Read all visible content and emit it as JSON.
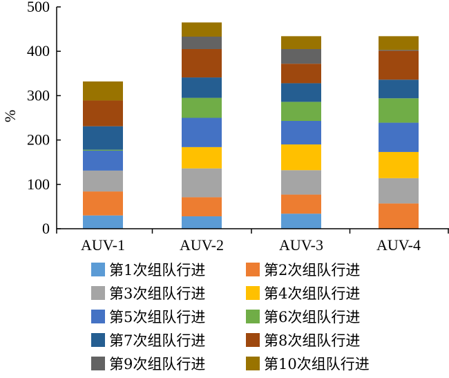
{
  "chart_data": {
    "type": "bar",
    "stacked": true,
    "ylabel": "%",
    "ylim": [
      0,
      500
    ],
    "yticks": [
      0,
      100,
      200,
      300,
      400,
      500
    ],
    "categories": [
      "AUV-1",
      "AUV-2",
      "AUV-3",
      "AUV-4"
    ],
    "legend_position": "bottom",
    "grid": false,
    "series": [
      {
        "name": "第1次组队行进",
        "color": "#5b9bd5",
        "values": [
          30,
          28,
          34,
          0
        ]
      },
      {
        "name": "第2次组队行进",
        "color": "#ed7d31",
        "values": [
          54,
          43,
          43,
          57
        ]
      },
      {
        "name": "第3次组队行进",
        "color": "#a5a5a5",
        "values": [
          47,
          65,
          55,
          57
        ]
      },
      {
        "name": "第4次组队行进",
        "color": "#ffc000",
        "values": [
          0,
          48,
          58,
          59
        ]
      },
      {
        "name": "第5次组队行进",
        "color": "#4472c4",
        "values": [
          45,
          66,
          53,
          66
        ]
      },
      {
        "name": "第6次组队行进",
        "color": "#70ad47",
        "values": [
          2,
          45,
          43,
          55
        ]
      },
      {
        "name": "第7次组队行进",
        "color": "#255e91",
        "values": [
          53,
          46,
          42,
          42
        ]
      },
      {
        "name": "第8次组队行进",
        "color": "#9e480e",
        "values": [
          58,
          64,
          44,
          65
        ]
      },
      {
        "name": "第9次组队行进",
        "color": "#636363",
        "values": [
          0,
          28,
          33,
          2
        ]
      },
      {
        "name": "第10次组队行进",
        "color": "#997300",
        "values": [
          43,
          32,
          29,
          31
        ]
      }
    ]
  }
}
